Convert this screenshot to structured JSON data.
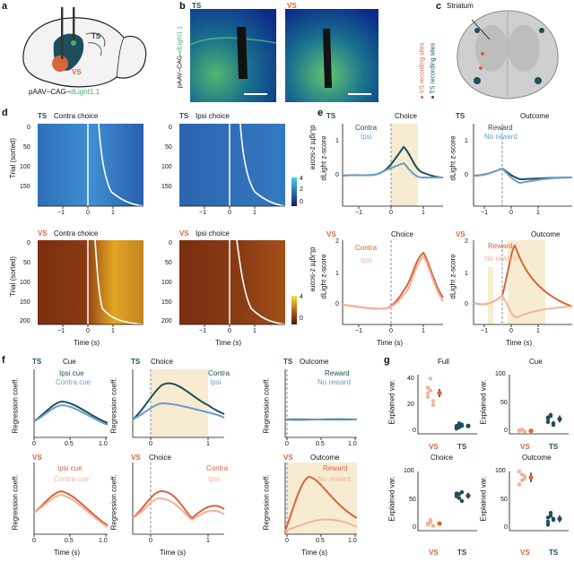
{
  "colors": {
    "ts_dark": "#1f4e5b",
    "ts_light": "#6a9ec8",
    "vs_dark": "#d8653c",
    "vs_light": "#f0b39a",
    "green": "#41b26a",
    "highlight": "#f7ecd2",
    "micro_bg": "#0b2a8a"
  },
  "panels": {
    "a": {
      "label": "a",
      "ts": "TS",
      "vs": "VS",
      "virus_prefix": "pAAV–CAG–",
      "virus_gene": "dLight1.1"
    },
    "b": {
      "label": "b",
      "ts": "TS",
      "vs": "VS",
      "side_prefix": "pAAV–CAG–",
      "side_gene": "dLight1.1"
    },
    "c": {
      "label": "c",
      "striatum": "Striatum",
      "vs_sites": "VS recording sites",
      "ts_sites": "TS recording sites"
    },
    "d": {
      "label": "d",
      "ts": "TS",
      "vs": "VS",
      "contra": "Contra choice",
      "ipsi": "Ipsi choice",
      "ylabel": "Trial (sorted)",
      "xlabel": "Time (s)",
      "cbar_label": "dLight z-score",
      "yticks": [
        "0",
        "50",
        "100",
        "150"
      ],
      "yticks_vs": [
        "0",
        "50",
        "100",
        "150",
        "200"
      ],
      "xticks": [
        "−1",
        "0",
        "1"
      ],
      "cbar_ticks": [
        "4",
        "2",
        "0"
      ],
      "cbar_ticks_vs": [
        "4",
        "0"
      ]
    },
    "e": {
      "label": "e",
      "ts": "TS",
      "vs": "VS",
      "choice": "Choice",
      "outcome": "Outcome",
      "contra": "Contra",
      "ipsi": "Ipsi",
      "reward": "Reward",
      "no_reward": "No reward",
      "ylabel": "dLight z-score",
      "xlabel": "Time (s)",
      "xticks": [
        "−1",
        "0",
        "1"
      ],
      "yticks_ts": [
        "1",
        "0"
      ],
      "yticks_vs": [
        "2",
        "1",
        "0"
      ]
    },
    "f": {
      "label": "f",
      "ts": "TS",
      "vs": "VS",
      "cue": "Cue",
      "choice": "Choice",
      "outcome": "Outcome",
      "ipsi_cue": "Ipsi cue",
      "contra_cue": "Contra cue",
      "contra": "Contra",
      "ipsi": "Ipsi",
      "reward": "Reward",
      "no_reward": "No reward",
      "ylabel": "Regression coeff.",
      "xlabel": "Time (s)",
      "xticks_cue": [
        "0",
        "0.5",
        "1.0"
      ],
      "xticks_choice": [
        "0",
        "1"
      ],
      "xticks_outcome": [
        "0",
        "0.5",
        "1.0"
      ]
    },
    "g": {
      "label": "g",
      "full": "Full",
      "cue": "Cue",
      "choice": "Choice",
      "outcome": "Outcome",
      "ylabel": "Explained var.",
      "vs": "VS",
      "ts": "TS",
      "yticks_full": [
        "40",
        "20",
        "0"
      ],
      "yticks_other": [
        "100",
        "50",
        "0"
      ]
    }
  },
  "chart_data": [
    {
      "type": "scatter",
      "title": "Full",
      "ylabel": "Explained var.",
      "ylim": [
        0,
        45
      ],
      "categories": [
        "VS",
        "TS"
      ],
      "series": [
        {
          "name": "VS",
          "values": [
            31,
            42,
            25,
            28,
            33,
            22,
            35
          ],
          "mean": 31,
          "sem": 3
        },
        {
          "name": "TS",
          "values": [
            6,
            5,
            7,
            4,
            8,
            6,
            5,
            7
          ],
          "mean": 6,
          "sem": 1
        }
      ]
    },
    {
      "type": "scatter",
      "title": "Cue",
      "ylabel": "Explained var.",
      "ylim": [
        0,
        100
      ],
      "categories": [
        "VS",
        "TS"
      ],
      "series": [
        {
          "name": "VS",
          "values": [
            5,
            7,
            4,
            6
          ],
          "mean": 5,
          "sem": 1
        },
        {
          "name": "TS",
          "values": [
            20,
            30,
            15,
            25,
            32,
            18,
            28
          ],
          "mean": 25,
          "sem": 6
        }
      ]
    },
    {
      "type": "scatter",
      "title": "Choice",
      "ylabel": "Explained var.",
      "ylim": [
        0,
        100
      ],
      "categories": [
        "VS",
        "TS"
      ],
      "series": [
        {
          "name": "VS",
          "values": [
            10,
            14,
            8,
            12,
            18
          ],
          "mean": 12,
          "sem": 2
        },
        {
          "name": "TS",
          "values": [
            60,
            55,
            65,
            58,
            62,
            50,
            63
          ],
          "mean": 59,
          "sem": 5
        }
      ]
    },
    {
      "type": "scatter",
      "title": "Outcome",
      "ylabel": "Explained var.",
      "ylim": [
        0,
        100
      ],
      "categories": [
        "VS",
        "TS"
      ],
      "series": [
        {
          "name": "VS",
          "values": [
            100,
            85,
            92,
            78,
            95,
            88
          ],
          "mean": 90,
          "sem": 8
        },
        {
          "name": "TS",
          "values": [
            15,
            25,
            20,
            10,
            30,
            18,
            22
          ],
          "mean": 20,
          "sem": 6
        }
      ]
    }
  ]
}
